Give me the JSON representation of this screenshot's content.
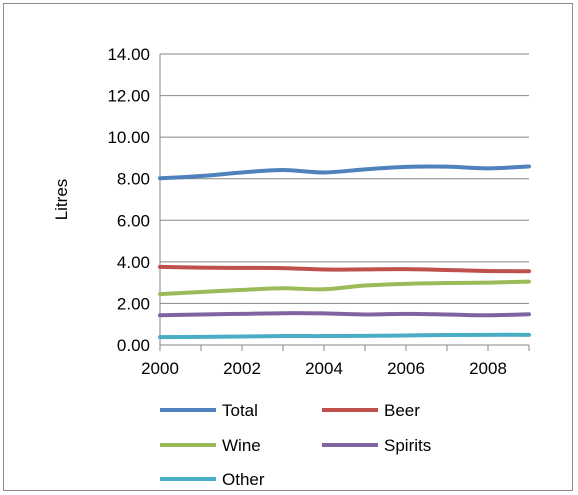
{
  "chart_data": {
    "type": "line",
    "title": "",
    "xlabel": "",
    "ylabel": "Litres",
    "xlim": [
      2000,
      2009
    ],
    "ylim": [
      0,
      14
    ],
    "x_ticks": [
      "2000",
      "2002",
      "2004",
      "2006",
      "2008"
    ],
    "y_ticks": [
      "0.00",
      "2.00",
      "4.00",
      "6.00",
      "8.00",
      "10.00",
      "12.00",
      "14.00"
    ],
    "grid": "horizontal",
    "legend_position": "bottom",
    "x": [
      2000,
      2001,
      2002,
      2003,
      2004,
      2005,
      2006,
      2007,
      2008,
      2009
    ],
    "series": [
      {
        "name": "Total",
        "color": "#4f81bd",
        "values": [
          8.02,
          8.13,
          8.3,
          8.42,
          8.3,
          8.45,
          8.57,
          8.58,
          8.5,
          8.59
        ]
      },
      {
        "name": "Beer",
        "color": "#c0504d",
        "values": [
          3.76,
          3.72,
          3.71,
          3.7,
          3.63,
          3.64,
          3.65,
          3.61,
          3.56,
          3.55
        ]
      },
      {
        "name": "Wine",
        "color": "#9bbb59",
        "values": [
          2.45,
          2.55,
          2.65,
          2.73,
          2.68,
          2.86,
          2.94,
          2.98,
          3.0,
          3.05
        ]
      },
      {
        "name": "Spirits",
        "color": "#8064a2",
        "values": [
          1.43,
          1.47,
          1.5,
          1.53,
          1.52,
          1.47,
          1.5,
          1.47,
          1.43,
          1.48
        ]
      },
      {
        "name": "Other",
        "color": "#4bacc6",
        "values": [
          0.38,
          0.39,
          0.41,
          0.43,
          0.43,
          0.44,
          0.46,
          0.48,
          0.49,
          0.49
        ]
      }
    ]
  }
}
